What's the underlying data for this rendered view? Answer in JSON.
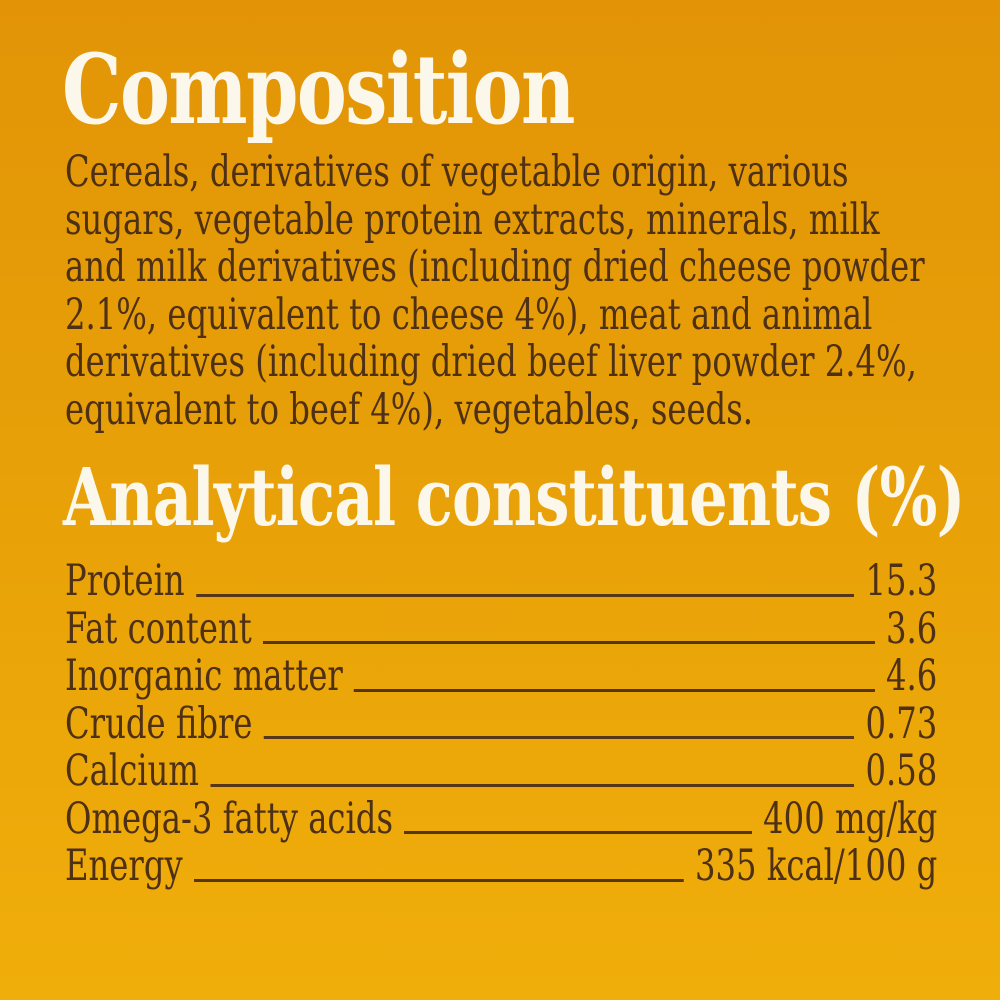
{
  "colors": {
    "background_top": "#e29406",
    "background_bottom": "#f0ae0a",
    "heading_text": "#fbf7eb",
    "body_text": "#4e3015",
    "leader_line": "#553619"
  },
  "composition": {
    "title": "Composition",
    "lines": [
      "Cereals, derivatives of vegetable origin, various",
      "sugars, vegetable protein extracts, minerals, milk",
      "and milk derivatives (including dried cheese powder",
      "2.1%, equivalent to cheese 4%), meat and animal",
      "derivatives (including dried beef liver powder 2.4%,",
      "equivalent to beef 4%), vegetables, seeds."
    ]
  },
  "analytical": {
    "title": "Analytical constituents (%)",
    "rows": [
      {
        "label": "Protein",
        "value": "15.3"
      },
      {
        "label": "Fat content",
        "value": "3.6"
      },
      {
        "label": "Inorganic matter",
        "value": "4.6"
      },
      {
        "label": "Crude fibre",
        "value": "0.73"
      },
      {
        "label": "Calcium",
        "value": "0.58"
      },
      {
        "label": "Omega-3 fatty acids",
        "value": "400 mg/kg"
      },
      {
        "label": "Energy",
        "value": "335 kcal/100 g"
      }
    ]
  }
}
